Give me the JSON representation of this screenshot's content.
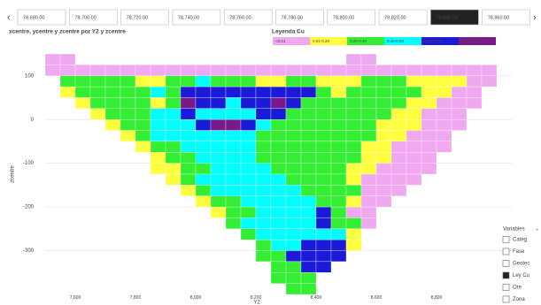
{
  "slicer": {
    "values": [
      "78,680.00",
      "78,700.00",
      "78,720.00",
      "78,740.00",
      "78,760.00",
      "78,780.00",
      "78,800.00",
      "78,820.00",
      "78,840.00",
      "78,860.00"
    ],
    "selected": 8
  },
  "variables": {
    "title": "Variables",
    "items": [
      "Categ",
      "Fase",
      "Geotec",
      "Ley Cu",
      "Ore",
      "Zona"
    ],
    "checked": 3
  },
  "chart_data": {
    "type": "heatmap",
    "title": "xcentre, ycentre y zcentre por Y2 y zcentre",
    "x_label": "Y2",
    "y_label": "zcentre",
    "legend_title": "Leyenda Cu",
    "classes": [
      {
        "name": "<0.01",
        "color": "#f0a8f0"
      },
      {
        "name": "0.01-0.20",
        "color": "#ffff40"
      },
      {
        "name": "0.20-0.40",
        "color": "#33ee33"
      },
      {
        "name": "0.40-0.60",
        "color": "#00ffff"
      },
      {
        "name": "0.60-0.80",
        "color": "#1a1ad8"
      },
      {
        "name": "0.80-1.00",
        "color": "#7a1a8a"
      }
    ],
    "xlim": [
      7500,
      9050
    ],
    "xticks": [
      {
        "value": 7600,
        "label": "7,600"
      },
      {
        "value": 7800,
        "label": "7,800"
      },
      {
        "value": 8000,
        "label": "8,000"
      },
      {
        "value": 8200,
        "label": "8,200"
      },
      {
        "value": 8400,
        "label": "8,400"
      },
      {
        "value": 8600,
        "label": "8,600"
      },
      {
        "value": 8800,
        "label": "8,800"
      }
    ],
    "ylim": [
      -400,
      150
    ],
    "yticks": [
      100,
      0,
      -100,
      -200,
      -300
    ],
    "cell_size": [
      50,
      25
    ],
    "cells": [
      [
        0,
        0,
        null,
        null,
        null,
        null,
        null,
        null,
        null,
        null,
        null,
        null,
        null,
        null,
        null,
        null,
        null,
        null,
        null,
        null,
        0,
        0,
        null,
        null,
        null,
        null,
        null,
        null,
        null,
        null,
        null
      ],
      [
        0,
        0,
        0,
        0,
        0,
        0,
        0,
        0,
        0,
        0,
        0,
        0,
        0,
        0,
        0,
        0,
        0,
        0,
        0,
        0,
        0,
        0,
        0,
        0,
        0,
        0,
        0,
        0,
        0,
        0,
        null
      ],
      [
        null,
        2,
        2,
        2,
        2,
        2,
        1,
        1,
        2,
        2,
        3,
        2,
        2,
        2,
        1,
        1,
        2,
        2,
        1,
        1,
        1,
        2,
        2,
        2,
        1,
        1,
        1,
        1,
        0,
        0,
        null
      ],
      [
        null,
        1,
        2,
        2,
        2,
        2,
        2,
        3,
        2,
        4,
        4,
        4,
        4,
        4,
        4,
        4,
        4,
        4,
        2,
        1,
        2,
        2,
        2,
        2,
        2,
        1,
        1,
        0,
        0,
        null,
        null
      ],
      [
        null,
        null,
        1,
        2,
        2,
        2,
        2,
        1,
        2,
        5,
        4,
        4,
        3,
        4,
        4,
        5,
        4,
        2,
        2,
        2,
        2,
        2,
        2,
        2,
        1,
        1,
        0,
        0,
        0,
        null,
        null
      ],
      [
        null,
        null,
        null,
        1,
        2,
        2,
        2,
        3,
        3,
        4,
        3,
        3,
        3,
        3,
        4,
        4,
        2,
        2,
        2,
        2,
        2,
        2,
        2,
        1,
        1,
        0,
        0,
        0,
        null,
        null,
        null
      ],
      [
        null,
        null,
        null,
        null,
        1,
        2,
        2,
        3,
        3,
        3,
        4,
        5,
        5,
        4,
        3,
        2,
        2,
        2,
        2,
        2,
        2,
        2,
        1,
        1,
        1,
        0,
        0,
        0,
        null,
        null,
        null
      ],
      [
        null,
        null,
        null,
        null,
        null,
        1,
        2,
        3,
        3,
        3,
        3,
        3,
        3,
        3,
        2,
        2,
        2,
        2,
        2,
        2,
        2,
        2,
        1,
        1,
        0,
        0,
        0,
        null,
        null,
        null,
        null
      ],
      [
        null,
        null,
        null,
        null,
        null,
        null,
        1,
        2,
        2,
        3,
        3,
        3,
        3,
        3,
        2,
        2,
        2,
        2,
        2,
        2,
        2,
        1,
        1,
        0,
        0,
        0,
        0,
        null,
        null,
        null,
        null
      ],
      [
        null,
        null,
        null,
        null,
        null,
        null,
        null,
        1,
        2,
        2,
        3,
        3,
        3,
        3,
        2,
        2,
        2,
        2,
        2,
        2,
        2,
        1,
        1,
        0,
        0,
        0,
        null,
        null,
        null,
        null,
        null
      ],
      [
        null,
        null,
        null,
        null,
        null,
        null,
        null,
        1,
        1,
        2,
        2,
        3,
        3,
        3,
        3,
        2,
        2,
        2,
        2,
        2,
        1,
        1,
        0,
        0,
        0,
        0,
        null,
        null,
        null,
        null,
        null
      ],
      [
        null,
        null,
        null,
        null,
        null,
        null,
        null,
        null,
        1,
        2,
        3,
        3,
        3,
        3,
        3,
        3,
        2,
        2,
        2,
        2,
        1,
        0,
        0,
        0,
        0,
        null,
        null,
        null,
        null,
        null,
        null
      ],
      [
        null,
        null,
        null,
        null,
        null,
        null,
        null,
        null,
        null,
        1,
        2,
        3,
        3,
        3,
        3,
        3,
        3,
        2,
        2,
        2,
        2,
        0,
        0,
        0,
        null,
        null,
        null,
        null,
        null,
        null,
        null
      ],
      [
        null,
        null,
        null,
        null,
        null,
        null,
        null,
        null,
        null,
        null,
        1,
        2,
        2,
        3,
        3,
        3,
        3,
        3,
        2,
        2,
        1,
        0,
        0,
        null,
        null,
        null,
        null,
        null,
        null,
        null,
        null
      ],
      [
        null,
        null,
        null,
        null,
        null,
        null,
        null,
        null,
        null,
        null,
        null,
        1,
        2,
        2,
        3,
        3,
        3,
        3,
        4,
        2,
        0,
        0,
        null,
        null,
        null,
        null,
        null,
        null,
        null,
        null,
        null
      ],
      [
        null,
        null,
        null,
        null,
        null,
        null,
        null,
        null,
        null,
        null,
        null,
        null,
        2,
        3,
        3,
        3,
        3,
        3,
        4,
        2,
        2,
        0,
        null,
        null,
        null,
        null,
        null,
        null,
        null,
        null,
        null
      ],
      [
        null,
        null,
        null,
        null,
        null,
        null,
        null,
        null,
        null,
        null,
        null,
        null,
        null,
        2,
        3,
        3,
        3,
        3,
        3,
        3,
        1,
        null,
        null,
        null,
        null,
        null,
        null,
        null,
        null,
        null,
        null
      ],
      [
        null,
        null,
        null,
        null,
        null,
        null,
        null,
        null,
        null,
        null,
        null,
        null,
        null,
        null,
        2,
        3,
        3,
        4,
        4,
        4,
        1,
        null,
        null,
        null,
        null,
        null,
        null,
        null,
        null,
        null,
        null
      ],
      [
        null,
        null,
        null,
        null,
        null,
        null,
        null,
        null,
        null,
        null,
        null,
        null,
        null,
        null,
        2,
        2,
        4,
        4,
        4,
        4,
        null,
        null,
        null,
        null,
        null,
        null,
        null,
        null,
        null,
        null,
        null
      ],
      [
        null,
        null,
        null,
        null,
        null,
        null,
        null,
        null,
        null,
        null,
        null,
        null,
        null,
        null,
        null,
        2,
        2,
        4,
        4,
        null,
        null,
        null,
        null,
        null,
        null,
        null,
        null,
        null,
        null,
        null,
        null
      ],
      [
        null,
        null,
        null,
        null,
        null,
        null,
        null,
        null,
        null,
        null,
        null,
        null,
        null,
        null,
        null,
        2,
        2,
        2,
        null,
        null,
        null,
        null,
        null,
        null,
        null,
        null,
        null,
        null,
        null,
        null,
        null
      ],
      [
        null,
        null,
        null,
        null,
        null,
        null,
        null,
        null,
        null,
        null,
        null,
        null,
        null,
        null,
        null,
        null,
        2,
        2,
        null,
        null,
        null,
        null,
        null,
        null,
        null,
        null,
        null,
        null,
        null,
        null,
        null
      ]
    ]
  }
}
